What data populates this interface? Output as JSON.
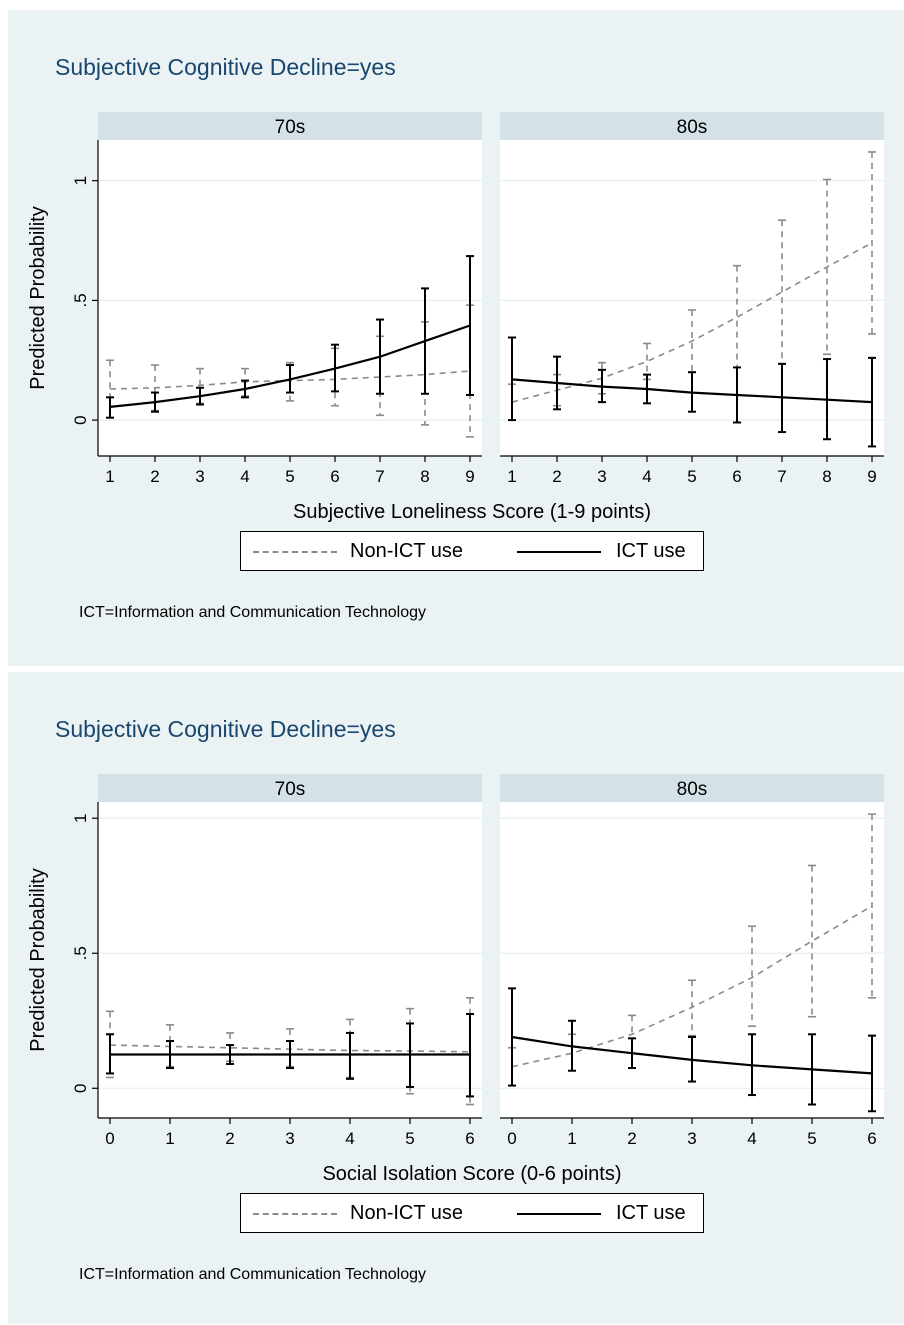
{
  "colors": {
    "background": "#eaf2f3",
    "title": "#1a476f",
    "strip": "#d4e2e8",
    "non_ict": "#8a8a8a",
    "ict": "#000000"
  },
  "chart_data": [
    {
      "type": "line",
      "title": "Subjective Cognitive Decline=yes",
      "xlabel": "Subjective Loneliness Score (1-9 points)",
      "ylabel": "Predicted Probability",
      "ylim": [
        -0.15,
        1.17
      ],
      "yticks": [
        0,
        0.5,
        1
      ],
      "ytick_labels": [
        "0",
        ".5",
        "1"
      ],
      "x": [
        1,
        2,
        3,
        4,
        5,
        6,
        7,
        8,
        9
      ],
      "xtick_labels": [
        "1",
        "2",
        "3",
        "4",
        "5",
        "6",
        "7",
        "8",
        "9"
      ],
      "panels": [
        {
          "label": "70s",
          "series": [
            {
              "name": "Non-ICT use",
              "style": "dashed",
              "values": [
                0.13,
                0.135,
                0.145,
                0.16,
                0.165,
                0.17,
                0.18,
                0.19,
                0.205
              ],
              "lower": [
                0.01,
                0.04,
                0.07,
                0.1,
                0.08,
                0.06,
                0.02,
                -0.02,
                -0.07
              ],
              "upper": [
                0.25,
                0.23,
                0.215,
                0.215,
                0.24,
                0.3,
                0.35,
                0.41,
                0.48
              ]
            },
            {
              "name": "ICT use",
              "style": "solid",
              "values": [
                0.055,
                0.075,
                0.1,
                0.13,
                0.17,
                0.215,
                0.265,
                0.33,
                0.395
              ],
              "lower": [
                0.01,
                0.035,
                0.065,
                0.095,
                0.115,
                0.12,
                0.11,
                0.11,
                0.105
              ],
              "upper": [
                0.095,
                0.115,
                0.135,
                0.165,
                0.23,
                0.315,
                0.42,
                0.55,
                0.685
              ]
            }
          ]
        },
        {
          "label": "80s",
          "series": [
            {
              "name": "Non-ICT use",
              "style": "dashed",
              "values": [
                0.075,
                0.125,
                0.175,
                0.245,
                0.33,
                0.43,
                0.535,
                0.64,
                0.74
              ],
              "lower": [
                0.0,
                0.06,
                0.11,
                0.17,
                0.2,
                0.22,
                0.235,
                0.275,
                0.36
              ],
              "upper": [
                0.15,
                0.19,
                0.24,
                0.32,
                0.46,
                0.645,
                0.835,
                1.005,
                1.12
              ]
            },
            {
              "name": "ICT use",
              "style": "solid",
              "values": [
                0.17,
                0.155,
                0.14,
                0.13,
                0.115,
                0.105,
                0.095,
                0.085,
                0.075
              ],
              "lower": [
                0.0,
                0.045,
                0.075,
                0.07,
                0.035,
                -0.01,
                -0.05,
                -0.08,
                -0.11
              ],
              "upper": [
                0.345,
                0.265,
                0.21,
                0.19,
                0.2,
                0.22,
                0.235,
                0.255,
                0.26
              ]
            }
          ]
        }
      ],
      "legend": {
        "position": "bottom",
        "entries": [
          "Non-ICT use",
          "ICT use"
        ]
      },
      "note": "ICT=Information and Communication Technology"
    },
    {
      "type": "line",
      "title": "Subjective Cognitive Decline=yes",
      "xlabel": "Social Isolation Score (0-6 points)",
      "ylabel": "Predicted Probability",
      "ylim": [
        -0.11,
        1.06
      ],
      "yticks": [
        0,
        0.5,
        1
      ],
      "ytick_labels": [
        "0",
        ".5",
        "1"
      ],
      "x": [
        0,
        1,
        2,
        3,
        4,
        5,
        6
      ],
      "xtick_labels": [
        "0",
        "1",
        "2",
        "3",
        "4",
        "5",
        "6"
      ],
      "panels": [
        {
          "label": "70s",
          "series": [
            {
              "name": "Non-ICT use",
              "style": "dashed",
              "values": [
                0.16,
                0.155,
                0.15,
                0.145,
                0.14,
                0.138,
                0.135
              ],
              "lower": [
                0.04,
                0.08,
                0.1,
                0.08,
                0.04,
                -0.02,
                -0.06
              ],
              "upper": [
                0.285,
                0.235,
                0.205,
                0.22,
                0.255,
                0.295,
                0.335
              ]
            },
            {
              "name": "ICT use",
              "style": "solid",
              "values": [
                0.125,
                0.125,
                0.125,
                0.125,
                0.125,
                0.125,
                0.125
              ],
              "lower": [
                0.055,
                0.075,
                0.09,
                0.075,
                0.035,
                0.005,
                -0.03
              ],
              "upper": [
                0.2,
                0.175,
                0.16,
                0.175,
                0.205,
                0.24,
                0.275
              ]
            }
          ]
        },
        {
          "label": "80s",
          "series": [
            {
              "name": "Non-ICT use",
              "style": "dashed",
              "values": [
                0.08,
                0.13,
                0.2,
                0.3,
                0.41,
                0.545,
                0.675
              ],
              "lower": [
                0.01,
                0.065,
                0.13,
                0.195,
                0.23,
                0.265,
                0.335
              ],
              "upper": [
                0.15,
                0.2,
                0.27,
                0.4,
                0.6,
                0.825,
                1.015
              ]
            },
            {
              "name": "ICT use",
              "style": "solid",
              "values": [
                0.19,
                0.155,
                0.13,
                0.105,
                0.085,
                0.07,
                0.055
              ],
              "lower": [
                0.01,
                0.065,
                0.075,
                0.025,
                -0.025,
                -0.06,
                -0.085
              ],
              "upper": [
                0.37,
                0.25,
                0.185,
                0.19,
                0.2,
                0.2,
                0.195
              ]
            }
          ]
        }
      ],
      "legend": {
        "position": "bottom",
        "entries": [
          "Non-ICT use",
          "ICT use"
        ]
      },
      "note": "ICT=Information and Communication Technology"
    }
  ]
}
